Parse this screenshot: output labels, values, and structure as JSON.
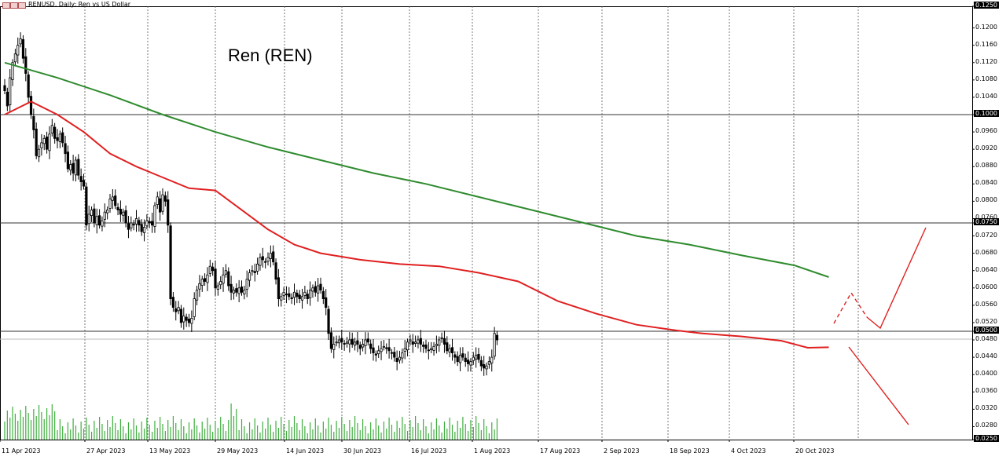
{
  "header": {
    "symbol_label": "RENUSD, Daily:  Ren vs US Dollar",
    "icon": "chart-window-icon"
  },
  "chart_data": {
    "type": "candlestick",
    "title": "Ren (REN)",
    "xlabel": "",
    "ylabel": "",
    "ylim": [
      0.025,
      0.125
    ],
    "y_tick_labels": [
      "0.1250",
      "0.1200",
      "0.1160",
      "0.1120",
      "0.1080",
      "0.1040",
      "0.1000",
      "0.0960",
      "0.0920",
      "0.0880",
      "0.0840",
      "0.0800",
      "0.0760",
      "0.0750",
      "0.0720",
      "0.0680",
      "0.0640",
      "0.0600",
      "0.0560",
      "0.0520",
      "0.0500",
      "0.0480",
      "0.0440",
      "0.0400",
      "0.0360",
      "0.0320",
      "0.0280",
      "0.0250"
    ],
    "boxed_y_labels": [
      "0.1250",
      "0.1000",
      "0.0750",
      "0.0500",
      "0.0250"
    ],
    "x_tick_labels": [
      "11 Apr 2023",
      "27 Apr 2023",
      "13 May 2023",
      "29 May 2023",
      "14 Jun 2023",
      "30 Jun 2023",
      "16 Jul 2023",
      "1 Aug 2023",
      "17 Aug 2023",
      "2 Sep 2023",
      "18 Sep 2023",
      "4 Oct 2023",
      "20 Oct 2023"
    ],
    "horizontal_levels": [
      0.1,
      0.075,
      0.05
    ],
    "candles": {
      "start_date": "2023-04-11",
      "close": [
        0.1055,
        0.102,
        0.1085,
        0.112,
        0.114,
        0.116,
        0.1175,
        0.113,
        0.1095,
        0.104,
        0.1,
        0.0965,
        0.0905,
        0.092,
        0.0935,
        0.0945,
        0.092,
        0.0955,
        0.0975,
        0.0945,
        0.094,
        0.0955,
        0.0935,
        0.091,
        0.0875,
        0.0885,
        0.0865,
        0.0895,
        0.086,
        0.0845,
        0.0835,
        0.0745,
        0.077,
        0.078,
        0.075,
        0.0765,
        0.0745,
        0.0755,
        0.0775,
        0.078,
        0.0805,
        0.081,
        0.079,
        0.078,
        0.077,
        0.0775,
        0.075,
        0.0735,
        0.075,
        0.0745,
        0.076,
        0.0745,
        0.073,
        0.074,
        0.0755,
        0.075,
        0.0745,
        0.079,
        0.081,
        0.0775,
        0.0815,
        0.08,
        0.0745,
        0.0575,
        0.0555,
        0.0545,
        0.0555,
        0.052,
        0.0535,
        0.0525,
        0.052,
        0.053,
        0.0575,
        0.0595,
        0.061,
        0.062,
        0.0615,
        0.063,
        0.065,
        0.064,
        0.06,
        0.0605,
        0.0615,
        0.063,
        0.064,
        0.0605,
        0.059,
        0.0595,
        0.059,
        0.06,
        0.059,
        0.0595,
        0.062,
        0.0635,
        0.064,
        0.0635,
        0.0655,
        0.067,
        0.0665,
        0.066,
        0.067,
        0.068,
        0.066,
        0.062,
        0.0575,
        0.058,
        0.059,
        0.0585,
        0.058,
        0.0575,
        0.059,
        0.058,
        0.0575,
        0.058,
        0.059,
        0.0575,
        0.0595,
        0.06,
        0.059,
        0.0605,
        0.0595,
        0.0575,
        0.0555,
        0.0495,
        0.046,
        0.047,
        0.0475,
        0.048,
        0.0475,
        0.047,
        0.0475,
        0.048,
        0.047,
        0.0475,
        0.047,
        0.046,
        0.047,
        0.048,
        0.0475,
        0.046,
        0.045,
        0.0445,
        0.0455,
        0.046,
        0.0465,
        0.046,
        0.0455,
        0.045,
        0.044,
        0.043,
        0.044,
        0.045,
        0.046,
        0.0475,
        0.048,
        0.047,
        0.0475,
        0.048,
        0.047,
        0.0465,
        0.046,
        0.0455,
        0.046,
        0.0465,
        0.047,
        0.048,
        0.0485,
        0.047,
        0.0455,
        0.046,
        0.045,
        0.044,
        0.043,
        0.0445,
        0.044,
        0.043,
        0.0425,
        0.043,
        0.044,
        0.0445,
        0.0435,
        0.042,
        0.0415,
        0.042,
        0.043,
        0.044,
        0.0495,
        0.048
      ],
      "open_offset_pattern": [
        0.0012,
        -0.001,
        0.0008,
        -0.0014,
        0.0006,
        -0.0008,
        0.0011,
        -0.0006
      ],
      "wick_pattern": [
        0.0015,
        0.001,
        0.002,
        0.0008,
        0.0012,
        0.0018
      ]
    },
    "moving_averages": [
      {
        "color": "#2e8b2e",
        "points": [
          [
            0,
            0.112
          ],
          [
            20,
            0.1085
          ],
          [
            40,
            0.1045
          ],
          [
            60,
            0.1
          ],
          [
            80,
            0.096
          ],
          [
            100,
            0.0925
          ],
          [
            120,
            0.0895
          ],
          [
            140,
            0.0865
          ],
          [
            160,
            0.084
          ],
          [
            180,
            0.081
          ],
          [
            200,
            0.078
          ],
          [
            220,
            0.075
          ],
          [
            240,
            0.072
          ],
          [
            260,
            0.07
          ],
          [
            280,
            0.0675
          ],
          [
            300,
            0.0652
          ],
          [
            313,
            0.0625
          ]
        ]
      },
      {
        "color": "#e02020",
        "points": [
          [
            0,
            0.1
          ],
          [
            10,
            0.103
          ],
          [
            20,
            0.1
          ],
          [
            30,
            0.096
          ],
          [
            40,
            0.091
          ],
          [
            50,
            0.088
          ],
          [
            60,
            0.0855
          ],
          [
            70,
            0.083
          ],
          [
            80,
            0.0825
          ],
          [
            90,
            0.078
          ],
          [
            100,
            0.0735
          ],
          [
            110,
            0.07
          ],
          [
            120,
            0.068
          ],
          [
            135,
            0.0665
          ],
          [
            150,
            0.0655
          ],
          [
            165,
            0.065
          ],
          [
            180,
            0.0635
          ],
          [
            195,
            0.0615
          ],
          [
            210,
            0.057
          ],
          [
            225,
            0.054
          ],
          [
            240,
            0.0515
          ],
          [
            255,
            0.0502
          ],
          [
            265,
            0.0495
          ],
          [
            280,
            0.0488
          ],
          [
            295,
            0.0478
          ],
          [
            305,
            0.0462
          ],
          [
            313,
            0.0463
          ]
        ]
      }
    ],
    "volume_scale_note": "",
    "projection": [
      {
        "style": "dashed",
        "color": "#e02020",
        "points": [
          [
            1061,
            412
          ],
          [
            1083,
            373
          ],
          [
            1103,
            404
          ]
        ]
      },
      {
        "style": "solid",
        "color": "#e02020",
        "points": [
          [
            1103,
            404
          ],
          [
            1120,
            418
          ],
          [
            1178,
            290
          ]
        ]
      },
      {
        "style": "solid",
        "color": "#e02020",
        "points": [
          [
            1080,
            442
          ],
          [
            1156,
            541
          ]
        ]
      }
    ]
  }
}
